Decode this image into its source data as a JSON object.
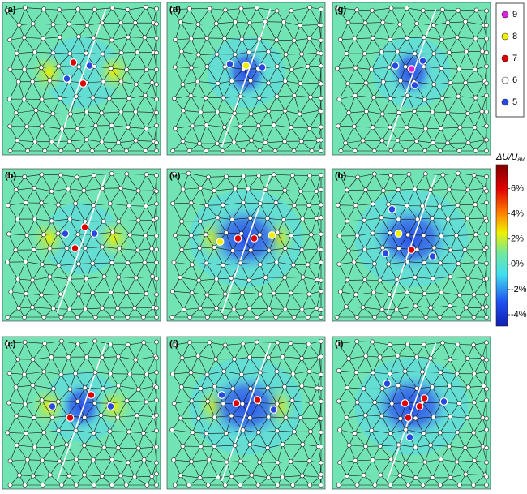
{
  "panels": [
    {
      "label": "(a)"
    },
    {
      "label": "(d)"
    },
    {
      "label": "(g)"
    },
    {
      "label": "(b)"
    },
    {
      "label": "(e)"
    },
    {
      "label": "(h)"
    },
    {
      "label": "(c)"
    },
    {
      "label": "(f)"
    },
    {
      "label": "(i)"
    }
  ],
  "legend": {
    "items": [
      {
        "label": "9",
        "color": "#e020e0"
      },
      {
        "label": "8",
        "color": "#f2f000"
      },
      {
        "label": "7",
        "color": "#e00000"
      },
      {
        "label": "6",
        "color": "#ffffff"
      },
      {
        "label": "5",
        "color": "#2848e0"
      }
    ]
  },
  "colorbar": {
    "title": "ΔU/U",
    "title_sub": "av",
    "range": [
      -4.9,
      7.9
    ],
    "ticks": [
      {
        "value": 6,
        "label": "6%"
      },
      {
        "value": 4,
        "label": "4%"
      },
      {
        "value": 2,
        "label": "2%"
      },
      {
        "value": 0,
        "label": "0%"
      },
      {
        "value": -2,
        "label": "-2%"
      },
      {
        "value": -4,
        "label": "-4%"
      }
    ]
  }
}
